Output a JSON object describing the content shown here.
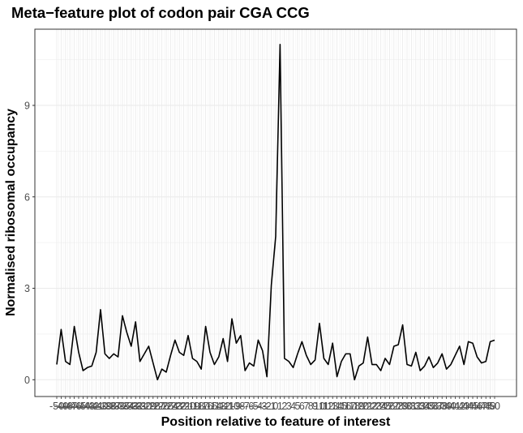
{
  "chart_data": {
    "type": "line",
    "title": "Meta−feature plot of codon pair CGA CCG",
    "xlabel": "Position relative to feature of interest",
    "ylabel": "Normalised ribosomal occupancy",
    "x_ticks": [
      -50,
      -49,
      -48,
      -47,
      -46,
      -45,
      -44,
      -43,
      -42,
      -41,
      -40,
      -39,
      -38,
      -37,
      -36,
      -35,
      -34,
      -33,
      -32,
      -31,
      -30,
      -29,
      -28,
      -27,
      -26,
      -25,
      -24,
      -23,
      -22,
      -21,
      -20,
      -19,
      -18,
      -17,
      -16,
      -15,
      -14,
      -13,
      -12,
      -11,
      -10,
      -9,
      -8,
      -7,
      -6,
      -5,
      -4,
      -3,
      -2,
      -1,
      0,
      1,
      2,
      3,
      4,
      5,
      6,
      7,
      8,
      9,
      10,
      11,
      12,
      13,
      14,
      15,
      16,
      17,
      18,
      19,
      20,
      21,
      22,
      23,
      24,
      25,
      26,
      27,
      28,
      29,
      30,
      31,
      32,
      33,
      34,
      35,
      36,
      37,
      38,
      39,
      40,
      41,
      42,
      43,
      44,
      45,
      46,
      47,
      48,
      49,
      50
    ],
    "y_ticks": [
      0,
      3,
      6,
      9
    ],
    "xlim": [
      -50,
      50
    ],
    "ylim": [
      -0.55,
      11.5
    ],
    "grid": true,
    "series": [
      {
        "line_color": "#000000",
        "x": [
          -50,
          -49,
          -48,
          -47,
          -46,
          -45,
          -44,
          -43,
          -42,
          -41,
          -40,
          -39,
          -38,
          -37,
          -36,
          -35,
          -34,
          -33,
          -32,
          -31,
          -30,
          -29,
          -28,
          -27,
          -26,
          -25,
          -24,
          -23,
          -22,
          -21,
          -20,
          -19,
          -18,
          -17,
          -16,
          -15,
          -14,
          -13,
          -12,
          -11,
          -10,
          -9,
          -8,
          -7,
          -6,
          -5,
          -4,
          -3,
          -2,
          -1,
          0,
          1,
          2,
          3,
          4,
          5,
          6,
          7,
          8,
          9,
          10,
          11,
          12,
          13,
          14,
          15,
          16,
          17,
          18,
          19,
          20,
          21,
          22,
          23,
          24,
          25,
          26,
          27,
          28,
          29,
          30,
          31,
          32,
          33,
          34,
          35,
          36,
          37,
          38,
          39,
          40,
          41,
          42,
          43,
          44,
          45,
          46,
          47,
          48,
          49,
          50
        ],
        "y": [
          0.5,
          1.65,
          0.6,
          0.5,
          1.75,
          0.9,
          0.3,
          0.4,
          0.45,
          0.9,
          2.3,
          0.85,
          0.7,
          0.85,
          0.75,
          2.1,
          1.55,
          1.1,
          1.9,
          0.6,
          0.85,
          1.1,
          0.55,
          0.0,
          0.35,
          0.25,
          0.8,
          1.3,
          0.9,
          0.8,
          1.45,
          0.7,
          0.6,
          0.35,
          1.75,
          0.9,
          0.5,
          0.75,
          1.35,
          0.6,
          2.0,
          1.2,
          1.45,
          0.3,
          0.55,
          0.45,
          1.3,
          0.95,
          0.1,
          3.1,
          4.7,
          11.0,
          0.7,
          0.6,
          0.4,
          0.85,
          1.25,
          0.8,
          0.5,
          0.65,
          1.85,
          0.7,
          0.5,
          1.2,
          0.1,
          0.6,
          0.85,
          0.85,
          0.0,
          0.45,
          0.55,
          1.4,
          0.5,
          0.5,
          0.3,
          0.7,
          0.5,
          1.1,
          1.15,
          1.8,
          0.5,
          0.45,
          0.9,
          0.3,
          0.45,
          0.75,
          0.4,
          0.55,
          0.85,
          0.35,
          0.5,
          0.8,
          1.1,
          0.5,
          1.25,
          1.2,
          0.75,
          0.55,
          0.6,
          1.25,
          1.3
        ]
      }
    ]
  },
  "colors": {
    "panel_background": "#ffffff",
    "panel_border": "#333333",
    "grid": "#ebebeb",
    "line": "#000000",
    "tick_label": "#4d4d4d"
  }
}
